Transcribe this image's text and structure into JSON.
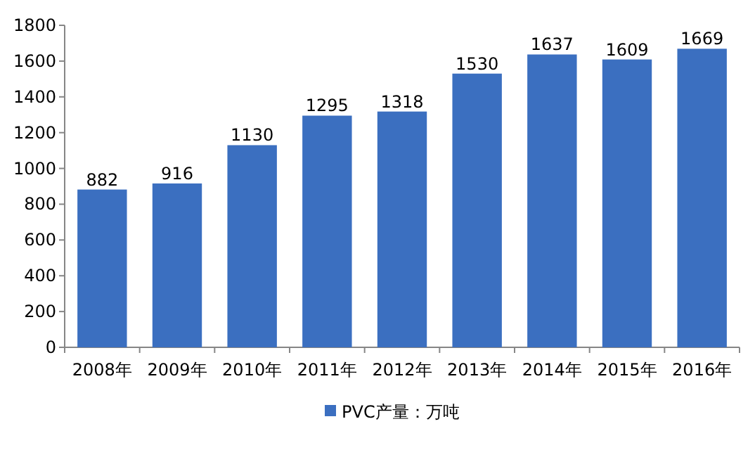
{
  "chart_data": {
    "type": "bar",
    "categories": [
      "2008年",
      "2009年",
      "2010年",
      "2011年",
      "2012年",
      "2013年",
      "2014年",
      "2015年",
      "2016年"
    ],
    "series": [
      {
        "name": "PVC产量：万吨",
        "color": "#3b6fc0",
        "values": [
          882,
          916,
          1130,
          1295,
          1318,
          1530,
          1637,
          1609,
          1669
        ]
      }
    ],
    "ylim": [
      0,
      1800
    ],
    "yticks": [
      0,
      200,
      400,
      600,
      800,
      1000,
      1200,
      1400,
      1600,
      1800
    ],
    "data_labels": true,
    "legend": "bottom"
  }
}
